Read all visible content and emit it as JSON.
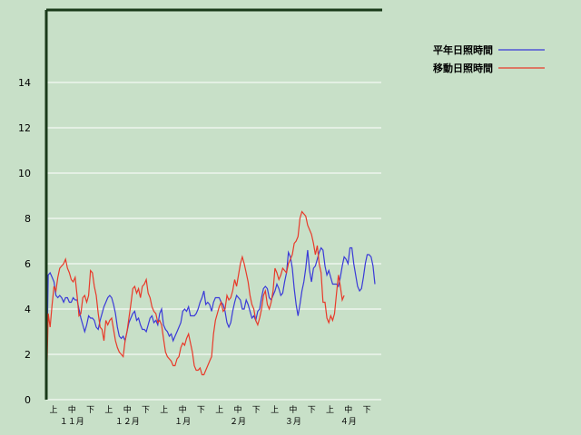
{
  "chart_data": {
    "type": "line",
    "title": "",
    "xlabel": "",
    "ylabel": "",
    "ylim": [
      0,
      14
    ],
    "yticks": [
      0,
      2,
      4,
      6,
      8,
      10,
      12,
      14
    ],
    "grid": true,
    "legend_position": "top-right",
    "x_period_labels": [
      "上",
      "中",
      "下",
      "上",
      "中",
      "下",
      "上",
      "中",
      "下",
      "上",
      "中",
      "下",
      "上",
      "中",
      "下",
      "上",
      "中",
      "下"
    ],
    "x_month_labels": [
      "１１月",
      "１２月",
      "１月",
      "２月",
      "３月",
      "４月"
    ],
    "series": [
      {
        "name": "平年日照時間",
        "color": "#3a3ad8",
        "values": [
          0.0,
          5.5,
          5.6,
          5.4,
          5.2,
          4.6,
          4.5,
          4.6,
          4.5,
          4.3,
          4.5,
          4.5,
          4.3,
          4.3,
          4.5,
          4.4,
          4.4,
          4.0,
          3.6,
          3.3,
          3.0,
          3.3,
          3.7,
          3.6,
          3.6,
          3.5,
          3.2,
          3.1,
          3.5,
          3.8,
          4.1,
          4.3,
          4.5,
          4.6,
          4.5,
          4.2,
          3.8,
          3.2,
          2.8,
          2.7,
          2.8,
          2.6,
          3.0,
          3.4,
          3.6,
          3.8,
          3.9,
          3.5,
          3.6,
          3.3,
          3.1,
          3.1,
          3.0,
          3.3,
          3.6,
          3.7,
          3.4,
          3.5,
          3.3,
          3.8,
          4.0,
          3.3,
          3.1,
          3.0,
          2.8,
          2.9,
          2.6,
          2.8,
          3.0,
          3.2,
          3.4,
          3.9,
          4.0,
          3.9,
          4.1,
          3.7,
          3.7,
          3.7,
          3.8,
          4.0,
          4.3,
          4.5,
          4.8,
          4.2,
          4.3,
          4.2,
          3.9,
          4.3,
          4.5,
          4.5,
          4.5,
          4.3,
          4.2,
          3.9,
          3.4,
          3.2,
          3.4,
          3.9,
          4.3,
          4.6,
          4.5,
          4.4,
          4.0,
          4.0,
          4.4,
          4.2,
          3.9,
          3.6,
          3.7,
          3.5,
          3.9,
          4.0,
          4.5,
          4.9,
          5.0,
          4.9,
          4.5,
          4.4,
          4.6,
          4.8,
          5.1,
          4.9,
          4.6,
          4.7,
          5.2,
          5.6,
          6.5,
          6.3,
          5.8,
          4.9,
          4.2,
          3.7,
          4.2,
          4.8,
          5.2,
          5.8,
          6.6,
          5.7,
          5.2,
          5.8,
          5.9,
          6.2,
          6.5,
          6.7,
          6.6,
          5.9,
          5.5,
          5.7,
          5.4,
          5.1,
          5.1,
          5.1,
          5.0,
          5.4,
          5.9,
          6.3,
          6.2,
          6.0,
          6.7,
          6.7,
          6.0,
          5.5,
          5.0,
          4.8,
          4.9,
          5.4,
          6.0,
          6.4,
          6.4,
          6.3,
          5.9,
          5.1
        ]
      },
      {
        "name": "移動日照時間",
        "color": "#e83a2a",
        "values": [
          0.0,
          3.8,
          3.2,
          4.2,
          5.0,
          4.8,
          5.4,
          5.8,
          5.9,
          6.0,
          6.2,
          5.8,
          5.6,
          5.3,
          5.2,
          5.4,
          4.6,
          3.7,
          3.8,
          4.5,
          4.6,
          4.3,
          4.6,
          5.7,
          5.6,
          5.0,
          4.6,
          3.8,
          3.2,
          3.1,
          2.6,
          3.5,
          3.3,
          3.5,
          3.6,
          3.1,
          2.6,
          2.3,
          2.1,
          2.0,
          1.9,
          2.6,
          3.0,
          3.6,
          4.2,
          4.9,
          5.0,
          4.7,
          4.9,
          4.5,
          5.0,
          5.1,
          5.3,
          4.7,
          4.5,
          4.1,
          3.9,
          3.8,
          3.4,
          3.5,
          3.3,
          2.7,
          2.1,
          1.9,
          1.8,
          1.7,
          1.5,
          1.5,
          1.8,
          1.9,
          2.3,
          2.5,
          2.4,
          2.7,
          2.9,
          2.5,
          2.1,
          1.5,
          1.3,
          1.3,
          1.4,
          1.1,
          1.1,
          1.3,
          1.5,
          1.7,
          1.9,
          2.9,
          3.5,
          3.8,
          4.1,
          4.3,
          3.9,
          4.0,
          4.6,
          4.4,
          4.5,
          4.8,
          5.3,
          5.0,
          5.5,
          6.0,
          6.3,
          6.0,
          5.6,
          5.2,
          4.6,
          4.2,
          4.0,
          3.5,
          3.3,
          3.6,
          4.0,
          4.6,
          4.8,
          4.2,
          4.0,
          4.3,
          4.8,
          5.8,
          5.6,
          5.3,
          5.5,
          5.8,
          5.7,
          5.6,
          6.0,
          6.2,
          6.4,
          6.9,
          7.0,
          7.2,
          8.0,
          8.3,
          8.2,
          8.1,
          7.7,
          7.5,
          7.3,
          6.9,
          6.4,
          6.8,
          6.0,
          5.6,
          4.3,
          4.3,
          3.6,
          3.4,
          3.7,
          3.5,
          3.8,
          4.7,
          5.5,
          5.0,
          4.4,
          4.6
        ]
      }
    ]
  }
}
